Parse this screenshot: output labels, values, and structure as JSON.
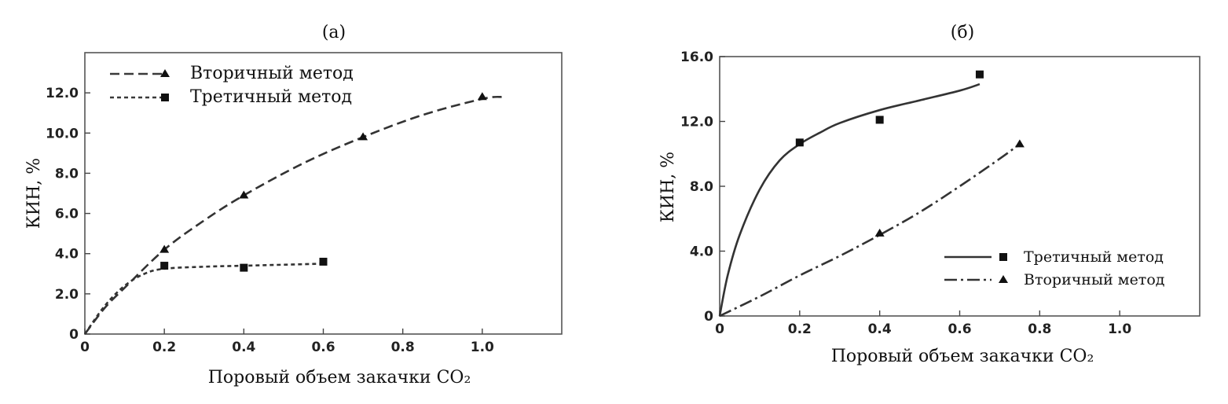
{
  "chart_data": [
    {
      "type": "line",
      "title": "(а)",
      "xlabel": "Поровый объем закачки CO₂",
      "ylabel": "КИН, %",
      "xlim": [
        0,
        1.2
      ],
      "ylim": [
        0,
        14
      ],
      "x_ticks": [
        "0",
        "0.2",
        "0.4",
        "0.6",
        "0.8",
        "1.0"
      ],
      "y_ticks": [
        "0",
        "2.0",
        "4.0",
        "6.0",
        "8.0",
        "10.0",
        "12.0"
      ],
      "legend_position": "top-left",
      "grid": false,
      "series": [
        {
          "name": "Вторичный метод",
          "marker": "triangle",
          "line_style": "long-dash",
          "points": [
            [
              0.2,
              4.2
            ],
            [
              0.4,
              6.9
            ],
            [
              0.7,
              9.8
            ],
            [
              1.0,
              11.8
            ]
          ],
          "curve": [
            [
              0,
              0
            ],
            [
              0.05,
              1.3
            ],
            [
              0.1,
              2.3
            ],
            [
              0.2,
              4.2
            ],
            [
              0.3,
              5.65
            ],
            [
              0.4,
              6.9
            ],
            [
              0.55,
              8.5
            ],
            [
              0.7,
              9.8
            ],
            [
              0.85,
              10.9
            ],
            [
              1.0,
              11.7
            ],
            [
              1.05,
              11.8
            ]
          ]
        },
        {
          "name": "Третичный метод",
          "marker": "square",
          "line_style": "short-dash",
          "points": [
            [
              0.2,
              3.4
            ],
            [
              0.4,
              3.3
            ],
            [
              0.6,
              3.6
            ]
          ],
          "curve": [
            [
              0,
              0
            ],
            [
              0.05,
              1.4
            ],
            [
              0.1,
              2.4
            ],
            [
              0.15,
              3.0
            ],
            [
              0.2,
              3.25
            ],
            [
              0.3,
              3.35
            ],
            [
              0.4,
              3.4
            ],
            [
              0.5,
              3.45
            ],
            [
              0.6,
              3.5
            ]
          ]
        }
      ]
    },
    {
      "type": "line",
      "title": "(б)",
      "xlabel": "Поровый объем закачки CO₂",
      "ylabel": "КИН, %",
      "xlim": [
        0,
        1.2
      ],
      "ylim": [
        0,
        16
      ],
      "x_ticks": [
        "0",
        "0.2",
        "0.4",
        "0.6",
        "0.8",
        "1.0"
      ],
      "y_ticks": [
        "0",
        "4.0",
        "8.0",
        "12.0",
        "16.0"
      ],
      "legend_position": "bottom-right",
      "grid": false,
      "series": [
        {
          "name": "Третичный метод",
          "marker": "square",
          "line_style": "solid",
          "points": [
            [
              0.2,
              10.7
            ],
            [
              0.4,
              12.1
            ],
            [
              0.65,
              14.9
            ]
          ],
          "curve": [
            [
              0,
              0
            ],
            [
              0.02,
              2.5
            ],
            [
              0.05,
              5.0
            ],
            [
              0.1,
              7.8
            ],
            [
              0.15,
              9.6
            ],
            [
              0.2,
              10.6
            ],
            [
              0.25,
              11.3
            ],
            [
              0.3,
              11.9
            ],
            [
              0.4,
              12.7
            ],
            [
              0.5,
              13.3
            ],
            [
              0.6,
              13.9
            ],
            [
              0.65,
              14.3
            ]
          ]
        },
        {
          "name": "Вторичный метод",
          "marker": "triangle",
          "line_style": "dash-dot",
          "points": [
            [
              0.4,
              5.1
            ],
            [
              0.75,
              10.6
            ]
          ],
          "curve": [
            [
              0,
              0
            ],
            [
              0.1,
              1.2
            ],
            [
              0.2,
              2.5
            ],
            [
              0.3,
              3.7
            ],
            [
              0.4,
              5.0
            ],
            [
              0.5,
              6.4
            ],
            [
              0.6,
              8.0
            ],
            [
              0.7,
              9.7
            ],
            [
              0.75,
              10.6
            ]
          ]
        }
      ]
    }
  ]
}
